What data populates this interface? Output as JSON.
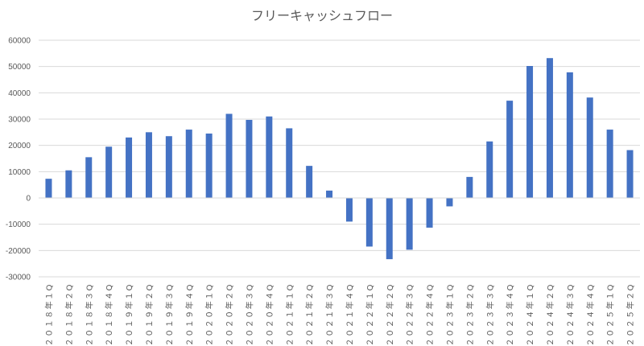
{
  "chart_data": {
    "type": "bar",
    "title": "フリーキャッシュフロー",
    "xlabel": "",
    "ylabel": "",
    "ylim": [
      -30000,
      60000
    ],
    "yticks": [
      60000,
      50000,
      40000,
      30000,
      20000,
      10000,
      0,
      -10000,
      -20000,
      -30000
    ],
    "grid": true,
    "legend": "none",
    "bar_color": "#4472C4",
    "categories": [
      "２０１８年１Q",
      "２０１８年２Q",
      "２０１８年３Q",
      "２０１８年４Q",
      "２０１９年１Q",
      "２０１９年２Q",
      "２０１９年３Q",
      "２０１９年４Q",
      "２０２０年１Q",
      "２０２０年２Q",
      "２０２０年３Q",
      "２０２０年４Q",
      "２０２１年１Q",
      "２０２１年２Q",
      "２０２１年３Q",
      "２０２１年４Q",
      "２０２２年１Q",
      "２０２２年２Q",
      "２０２２年３Q",
      "２０２２年４Q",
      "２０２３年１Q",
      "２０２３年２Q",
      "２０２３年３Q",
      "２０２３年４Q",
      "２０２４年１Q",
      "２０２４年２Q",
      "２０２４年３Q",
      "２０２４年４Q",
      "２０２５年１Q",
      "２０２５年２Q"
    ],
    "values": [
      7300,
      10500,
      15500,
      19500,
      23000,
      25000,
      23500,
      26000,
      24500,
      32000,
      29700,
      31000,
      26500,
      12200,
      2800,
      -9000,
      -18500,
      -23300,
      -19700,
      -11300,
      -3200,
      8000,
      21500,
      37000,
      50200,
      53200,
      47800,
      38200,
      26000,
      18200
    ]
  }
}
